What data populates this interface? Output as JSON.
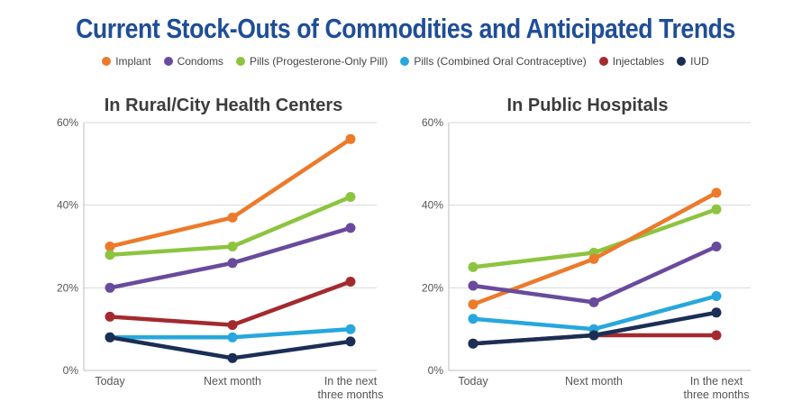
{
  "title": "Current Stock-Outs of Commodities and Anticipated Trends",
  "legend": [
    {
      "name": "Implant",
      "color": "#ec7a2b"
    },
    {
      "name": "Condoms",
      "color": "#6a4a9c"
    },
    {
      "name": "Pills (Progesterone-Only Pill)",
      "color": "#8cc43f"
    },
    {
      "name": "Pills (Combined Oral Contraceptive)",
      "color": "#27a7dd"
    },
    {
      "name": "Injectables",
      "color": "#a32a2e"
    },
    {
      "name": "IUD",
      "color": "#1b2e55"
    }
  ],
  "chart_data": [
    {
      "type": "line",
      "title": "In Rural/City Health Centers",
      "categories": [
        "Today",
        "Next month",
        "In the next three months"
      ],
      "ylim": [
        0,
        60
      ],
      "yticks": [
        "0%",
        "20%",
        "40%",
        "60%"
      ],
      "grid": true,
      "series": [
        {
          "name": "Implant",
          "values": [
            30,
            37,
            56
          ]
        },
        {
          "name": "Pills (Progesterone-Only Pill)",
          "values": [
            28,
            30,
            42
          ]
        },
        {
          "name": "Condoms",
          "values": [
            20,
            26,
            34.5
          ]
        },
        {
          "name": "Injectables",
          "values": [
            13,
            11,
            21.5
          ]
        },
        {
          "name": "Pills (Combined Oral Contraceptive)",
          "values": [
            8,
            8,
            10
          ]
        },
        {
          "name": "IUD",
          "values": [
            8,
            3,
            7
          ]
        }
      ]
    },
    {
      "type": "line",
      "title": "In Public Hospitals",
      "categories": [
        "Today",
        "Next month",
        "In the next three months"
      ],
      "ylim": [
        0,
        60
      ],
      "yticks": [
        "0%",
        "20%",
        "40%",
        "60%"
      ],
      "grid": true,
      "series": [
        {
          "name": "Pills (Progesterone-Only Pill)",
          "values": [
            25,
            28.5,
            39
          ]
        },
        {
          "name": "Implant",
          "values": [
            16,
            27,
            43
          ]
        },
        {
          "name": "Condoms",
          "values": [
            20.5,
            16.5,
            30
          ]
        },
        {
          "name": "Pills (Combined Oral Contraceptive)",
          "values": [
            12.5,
            10,
            18
          ]
        },
        {
          "name": "Injectables",
          "values": [
            6.5,
            8.5,
            8.5
          ]
        },
        {
          "name": "IUD",
          "values": [
            6.5,
            8.5,
            14
          ]
        }
      ]
    }
  ]
}
